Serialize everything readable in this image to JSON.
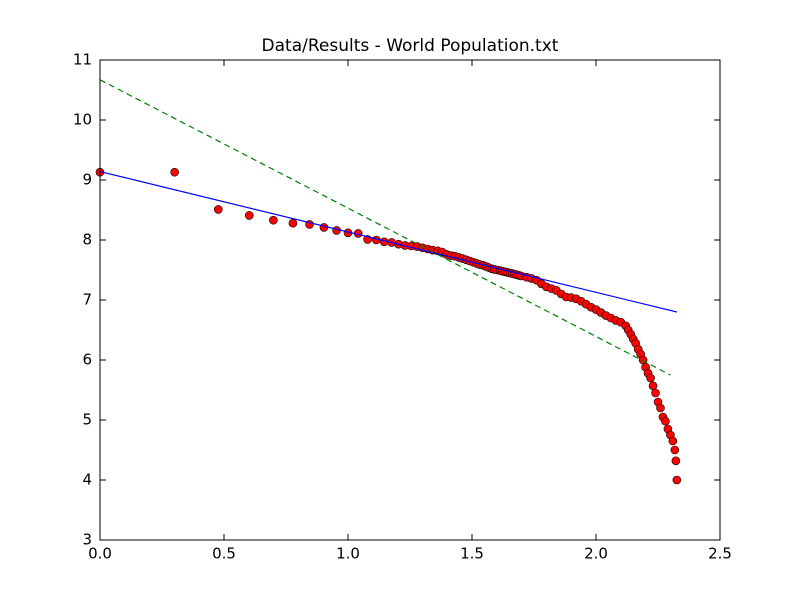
{
  "chart_data": {
    "type": "scatter",
    "title": "Data/Results - World Population.txt",
    "xlim": [
      0,
      2.5
    ],
    "ylim": [
      3,
      11
    ],
    "xticks": [
      {
        "value": 0,
        "label": "0.0"
      },
      0.5,
      {
        "value": 1,
        "label": "1.0"
      },
      1.5,
      {
        "value": 2,
        "label": "2.0"
      },
      2.5
    ],
    "yticks": [
      3,
      4,
      5,
      6,
      7,
      8,
      9,
      10,
      11
    ],
    "series": [
      {
        "type": "scatter",
        "color": "#ff0000",
        "edgecolor": "#000000",
        "x": [
          0,
          0.301,
          0.477,
          0.602,
          0.699,
          0.778,
          0.845,
          0.903,
          0.954,
          1.0,
          1.041,
          1.079,
          1.114,
          1.146,
          1.176,
          1.204,
          1.23,
          1.255,
          1.279,
          1.301,
          1.322,
          1.342,
          1.362,
          1.38,
          1.398,
          1.415,
          1.431,
          1.447,
          1.462,
          1.477,
          1.491,
          1.505,
          1.519,
          1.531,
          1.544,
          1.556,
          1.568,
          1.58,
          1.591,
          1.602,
          1.613,
          1.623,
          1.633,
          1.643,
          1.653,
          1.663,
          1.672,
          1.681,
          1.69,
          1.699,
          1.72,
          1.74,
          1.76,
          1.78,
          1.8,
          1.82,
          1.84,
          1.86,
          1.88,
          1.9,
          1.92,
          1.94,
          1.96,
          1.98,
          2.0,
          2.02,
          2.04,
          2.06,
          2.08,
          2.1,
          2.12,
          2.13,
          2.14,
          2.15,
          2.16,
          2.17,
          2.18,
          2.19,
          2.2,
          2.21,
          2.22,
          2.23,
          2.24,
          2.25,
          2.26,
          2.27,
          2.28,
          2.29,
          2.3,
          2.31,
          2.318,
          2.322,
          2.326
        ],
        "values": [
          9.13,
          9.13,
          8.51,
          8.41,
          8.33,
          8.28,
          8.26,
          8.21,
          8.16,
          8.12,
          8.11,
          8.01,
          8.0,
          7.97,
          7.96,
          7.93,
          7.91,
          7.9,
          7.89,
          7.87,
          7.85,
          7.83,
          7.82,
          7.8,
          7.76,
          7.74,
          7.73,
          7.71,
          7.69,
          7.67,
          7.65,
          7.63,
          7.61,
          7.59,
          7.58,
          7.56,
          7.54,
          7.52,
          7.51,
          7.5,
          7.49,
          7.48,
          7.47,
          7.46,
          7.45,
          7.44,
          7.43,
          7.42,
          7.41,
          7.4,
          7.38,
          7.36,
          7.33,
          7.27,
          7.22,
          7.19,
          7.16,
          7.1,
          7.05,
          7.04,
          7.02,
          6.98,
          6.93,
          6.88,
          6.84,
          6.79,
          6.74,
          6.7,
          6.66,
          6.63,
          6.57,
          6.5,
          6.43,
          6.35,
          6.28,
          6.18,
          6.1,
          6.0,
          5.88,
          5.78,
          5.7,
          5.57,
          5.45,
          5.3,
          5.2,
          5.05,
          4.98,
          4.85,
          4.75,
          4.65,
          4.5,
          4.32,
          4.0
        ]
      },
      {
        "type": "line",
        "color": "#0000ff",
        "dashed": false,
        "x": [
          0,
          2.326
        ],
        "values": [
          9.14,
          6.8
        ]
      },
      {
        "type": "line",
        "color": "#008000",
        "dashed": true,
        "x": [
          0,
          2.3
        ],
        "values": [
          10.67,
          5.75
        ]
      }
    ]
  }
}
